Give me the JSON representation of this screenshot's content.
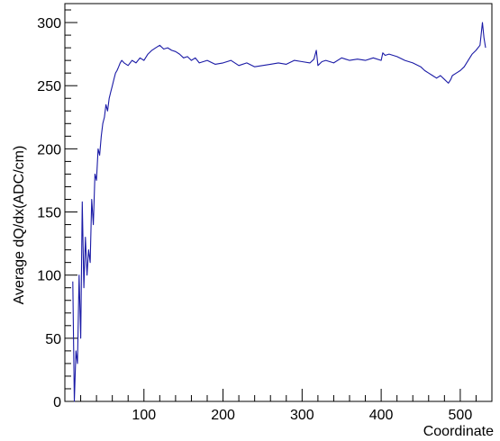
{
  "chart_data": {
    "type": "line",
    "title": "",
    "xlabel": "Coordinate",
    "ylabel": "Average dQ/dx(ADC/cm)",
    "xlim": [
      0,
      540
    ],
    "ylim": [
      0,
      315
    ],
    "x_ticks": [
      100,
      200,
      300,
      400,
      500
    ],
    "x_tick_labels": [
      "100",
      "200",
      "300",
      "400",
      "500"
    ],
    "y_ticks": [
      0,
      50,
      100,
      150,
      200,
      250,
      300
    ],
    "y_tick_labels": [
      "0",
      "50",
      "100",
      "150",
      "200",
      "250",
      "300"
    ],
    "grid": false,
    "legend": "none",
    "line_color": "#1a1aa6",
    "series": [
      {
        "x": [
          10,
          12,
          14,
          16,
          18,
          20,
          22,
          24,
          26,
          28,
          30,
          32,
          34,
          36,
          38,
          40,
          42,
          44,
          46,
          48,
          50,
          52,
          54,
          56,
          58,
          60,
          62,
          64,
          66,
          68,
          70,
          72,
          75,
          80,
          85,
          90,
          95,
          100,
          105,
          110,
          115,
          120,
          125,
          130,
          135,
          140,
          145,
          150,
          155,
          160,
          165,
          170,
          180,
          190,
          200,
          210,
          220,
          230,
          240,
          250,
          260,
          270,
          280,
          290,
          300,
          310,
          315,
          318,
          320,
          325,
          330,
          340,
          350,
          360,
          370,
          380,
          390,
          400,
          402,
          405,
          410,
          420,
          430,
          440,
          450,
          455,
          460,
          465,
          470,
          475,
          480,
          485,
          488,
          490,
          495,
          500,
          505,
          510,
          515,
          520,
          525,
          528,
          530,
          532
        ],
        "y": [
          95,
          0,
          40,
          30,
          100,
          50,
          158,
          90,
          130,
          100,
          120,
          110,
          160,
          140,
          180,
          175,
          200,
          195,
          210,
          220,
          225,
          235,
          230,
          240,
          245,
          250,
          255,
          260,
          262,
          265,
          268,
          270,
          268,
          266,
          270,
          268,
          272,
          270,
          275,
          278,
          280,
          282,
          279,
          280,
          278,
          277,
          275,
          272,
          273,
          270,
          272,
          268,
          270,
          267,
          268,
          270,
          266,
          268,
          265,
          266,
          267,
          268,
          267,
          270,
          269,
          268,
          271,
          278,
          266,
          269,
          270,
          268,
          272,
          270,
          271,
          270,
          272,
          270,
          276,
          274,
          275,
          273,
          270,
          268,
          265,
          262,
          260,
          258,
          256,
          258,
          255,
          252,
          255,
          258,
          260,
          262,
          265,
          270,
          275,
          278,
          282,
          300,
          288,
          280
        ]
      }
    ]
  }
}
